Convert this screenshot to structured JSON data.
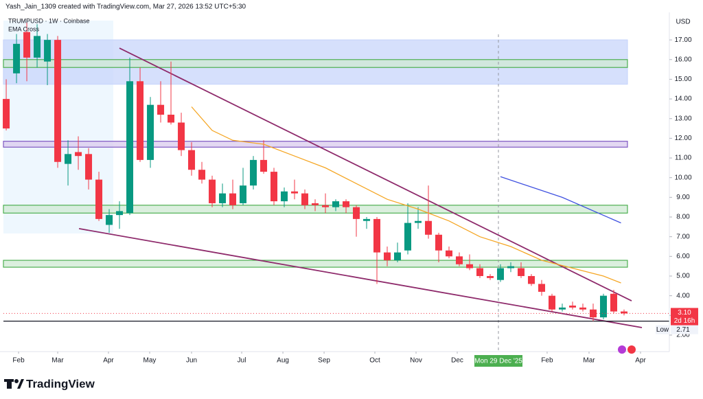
{
  "chart_data": {
    "type": "candlestick",
    "header": "Yash_Jain_1309 created with TradingView.com, Mar 27, 2026 13:52 UTC+5:30",
    "symbol": "TRUMPUSD · 1W · Coinbase",
    "indicator": "EMA Cross",
    "currency": "USD",
    "up_color": "#089981",
    "down_color": "#f23645",
    "candles": [
      [
        14.0,
        15.0,
        12.4,
        12.5
      ],
      [
        15.3,
        17.3,
        14.8,
        16.8
      ],
      [
        17.4,
        17.9,
        14.9,
        16.1
      ],
      [
        16.1,
        17.8,
        15.6,
        17.2
      ],
      [
        15.9,
        17.3,
        14.7,
        17.0
      ],
      [
        17.0,
        17.2,
        10.5,
        10.8
      ],
      [
        10.7,
        11.9,
        9.6,
        11.2
      ],
      [
        11.3,
        12.1,
        10.4,
        11.1
      ],
      [
        11.2,
        11.5,
        9.4,
        9.9
      ],
      [
        9.9,
        10.3,
        7.8,
        7.9
      ],
      [
        7.6,
        8.4,
        7.2,
        8.1
      ],
      [
        8.1,
        8.8,
        7.4,
        8.3
      ],
      [
        8.2,
        16.1,
        8.1,
        14.9
      ],
      [
        14.9,
        15.6,
        10.8,
        10.9
      ],
      [
        10.9,
        14.1,
        10.5,
        13.7
      ],
      [
        13.7,
        14.9,
        12.8,
        13.2
      ],
      [
        13.2,
        15.9,
        12.7,
        12.8
      ],
      [
        12.8,
        13.3,
        11.1,
        11.4
      ],
      [
        11.4,
        11.8,
        10.1,
        10.4
      ],
      [
        10.4,
        10.8,
        9.7,
        9.9
      ],
      [
        9.9,
        10.1,
        8.5,
        8.7
      ],
      [
        8.7,
        9.7,
        8.5,
        9.2
      ],
      [
        9.2,
        9.9,
        8.4,
        8.6
      ],
      [
        8.7,
        10.5,
        8.6,
        9.6
      ],
      [
        9.6,
        11.1,
        9.4,
        10.9
      ],
      [
        10.9,
        11.9,
        10.2,
        10.3
      ],
      [
        10.3,
        10.5,
        8.6,
        8.8
      ],
      [
        8.8,
        9.5,
        8.5,
        9.3
      ],
      [
        9.3,
        9.9,
        8.9,
        9.2
      ],
      [
        9.2,
        9.4,
        8.4,
        8.6
      ],
      [
        8.7,
        8.9,
        8.3,
        8.6
      ],
      [
        8.6,
        9.2,
        8.2,
        8.5
      ],
      [
        8.5,
        8.9,
        8.3,
        8.8
      ],
      [
        8.8,
        8.9,
        8.2,
        8.5
      ],
      [
        8.5,
        8.6,
        7.0,
        7.9
      ],
      [
        7.8,
        8.0,
        7.4,
        7.9
      ],
      [
        7.9,
        8.0,
        4.6,
        6.2
      ],
      [
        6.2,
        6.5,
        5.5,
        5.8
      ],
      [
        5.8,
        6.7,
        5.7,
        6.2
      ],
      [
        6.3,
        8.7,
        6.1,
        7.7
      ],
      [
        7.7,
        8.5,
        7.4,
        7.8
      ],
      [
        7.8,
        9.6,
        6.9,
        7.1
      ],
      [
        7.1,
        7.2,
        5.7,
        6.3
      ],
      [
        6.3,
        6.5,
        5.9,
        6.0
      ],
      [
        6.0,
        6.2,
        5.5,
        5.6
      ],
      [
        5.6,
        6.1,
        5.3,
        5.4
      ],
      [
        5.4,
        5.6,
        4.9,
        5.0
      ],
      [
        5.0,
        5.1,
        4.8,
        4.9
      ],
      [
        4.8,
        5.6,
        4.7,
        5.4
      ],
      [
        5.4,
        5.7,
        5.2,
        5.5
      ],
      [
        5.4,
        5.7,
        4.9,
        5.0
      ],
      [
        5.0,
        5.1,
        4.5,
        4.6
      ],
      [
        4.6,
        4.8,
        4.0,
        4.2
      ],
      [
        4.0,
        4.1,
        3.2,
        3.3
      ],
      [
        3.3,
        3.6,
        3.2,
        3.4
      ],
      [
        3.5,
        3.7,
        3.3,
        3.4
      ],
      [
        3.4,
        3.6,
        3.2,
        3.3
      ],
      [
        3.3,
        3.6,
        2.71,
        2.9
      ],
      [
        2.9,
        4.1,
        2.8,
        4.0
      ],
      [
        4.1,
        4.3,
        3.1,
        3.2
      ],
      [
        3.2,
        3.3,
        3.0,
        3.1
      ]
    ],
    "xlim": [
      -0.27,
      64.4
    ],
    "ylim": [
      1.23,
      18.33
    ],
    "xticks": [
      {
        "value": 1.2,
        "label": "Feb"
      },
      {
        "value": 5,
        "label": "Mar"
      },
      {
        "value": 9.93,
        "label": "Apr"
      },
      {
        "value": 13.93,
        "label": "May"
      },
      {
        "value": 18,
        "label": "Jun"
      },
      {
        "value": 22.87,
        "label": "Jul"
      },
      {
        "value": 26.87,
        "label": "Aug"
      },
      {
        "value": 30.87,
        "label": "Sep"
      },
      {
        "value": 35.8,
        "label": "Oct"
      },
      {
        "value": 39.8,
        "label": "Nov"
      },
      {
        "value": 43.8,
        "label": "Dec"
      },
      {
        "value": 52.53,
        "label": "Feb"
      },
      {
        "value": 56.6,
        "label": "Mar"
      },
      {
        "value": 61.6,
        "label": "Apr"
      }
    ],
    "yticks": [
      {
        "value": 2,
        "label": "2.00"
      },
      {
        "value": 3,
        "label": "3.00"
      },
      {
        "value": 4,
        "label": "4.00"
      },
      {
        "value": 5,
        "label": "5.00"
      },
      {
        "value": 6,
        "label": "6.00"
      },
      {
        "value": 7,
        "label": "7.00"
      },
      {
        "value": 8,
        "label": "8.00"
      },
      {
        "value": 9,
        "label": "9.00"
      },
      {
        "value": 10,
        "label": "10.00"
      },
      {
        "value": 11,
        "label": "11.00"
      },
      {
        "value": 12,
        "label": "12.00"
      },
      {
        "value": 13,
        "label": "13.00"
      },
      {
        "value": 14,
        "label": "14.00"
      },
      {
        "value": 15,
        "label": "15.00"
      },
      {
        "value": 16,
        "label": "16.00"
      },
      {
        "value": 17,
        "label": "17.00"
      }
    ],
    "zones": [
      {
        "from": 14.75,
        "to": 17.0,
        "end": 60.33,
        "fill": "#c8d5fb",
        "stroke": "#c8d5fb"
      },
      {
        "from": 15.6,
        "to": 16.0,
        "end": 60.33,
        "fill": "#cfe9d3",
        "stroke": "#4caf50"
      },
      {
        "from": 11.55,
        "to": 11.85,
        "end": 60.33,
        "fill": "#d9cbee",
        "stroke": "#7e57c2"
      },
      {
        "from": 8.2,
        "to": 8.6,
        "end": 60.33,
        "fill": "#cfe9d3",
        "stroke": "#4caf50"
      },
      {
        "from": 5.45,
        "to": 5.8,
        "end": 60.33,
        "fill": "#cfe9d3",
        "stroke": "#4caf50"
      }
    ],
    "series": [
      {
        "color": "#f5a623",
        "x": [
          18,
          20,
          22,
          25,
          28,
          31,
          34,
          37,
          40,
          43,
          46,
          49,
          52,
          55,
          58,
          59.7
        ],
        "values": [
          13.6,
          12.4,
          11.9,
          11.7,
          11.1,
          10.5,
          9.7,
          8.9,
          8.4,
          7.8,
          7.0,
          6.5,
          5.8,
          5.4,
          5.0,
          4.65
        ]
      },
      {
        "color": "#3f51e0",
        "x": [
          48,
          54,
          59.7
        ],
        "values": [
          10.05,
          9.0,
          7.7
        ]
      }
    ],
    "trendlines": [
      {
        "color": "#8e2a6b",
        "x": [
          11,
          60.73
        ],
        "values": [
          16.58,
          3.74
        ]
      },
      {
        "color": "#8e2a6b",
        "x": [
          7.07,
          61.73
        ],
        "values": [
          7.41,
          2.38
        ]
      }
    ],
    "last_price": 3.1,
    "last_price_label": "3.10",
    "countdown": "2d 16h",
    "low": 2.71,
    "low_title": "Low",
    "low_label": "2.71",
    "crosshair": {
      "x": 47.8,
      "label": "Mon 29 Dec '25"
    },
    "brand": "TradingView"
  }
}
